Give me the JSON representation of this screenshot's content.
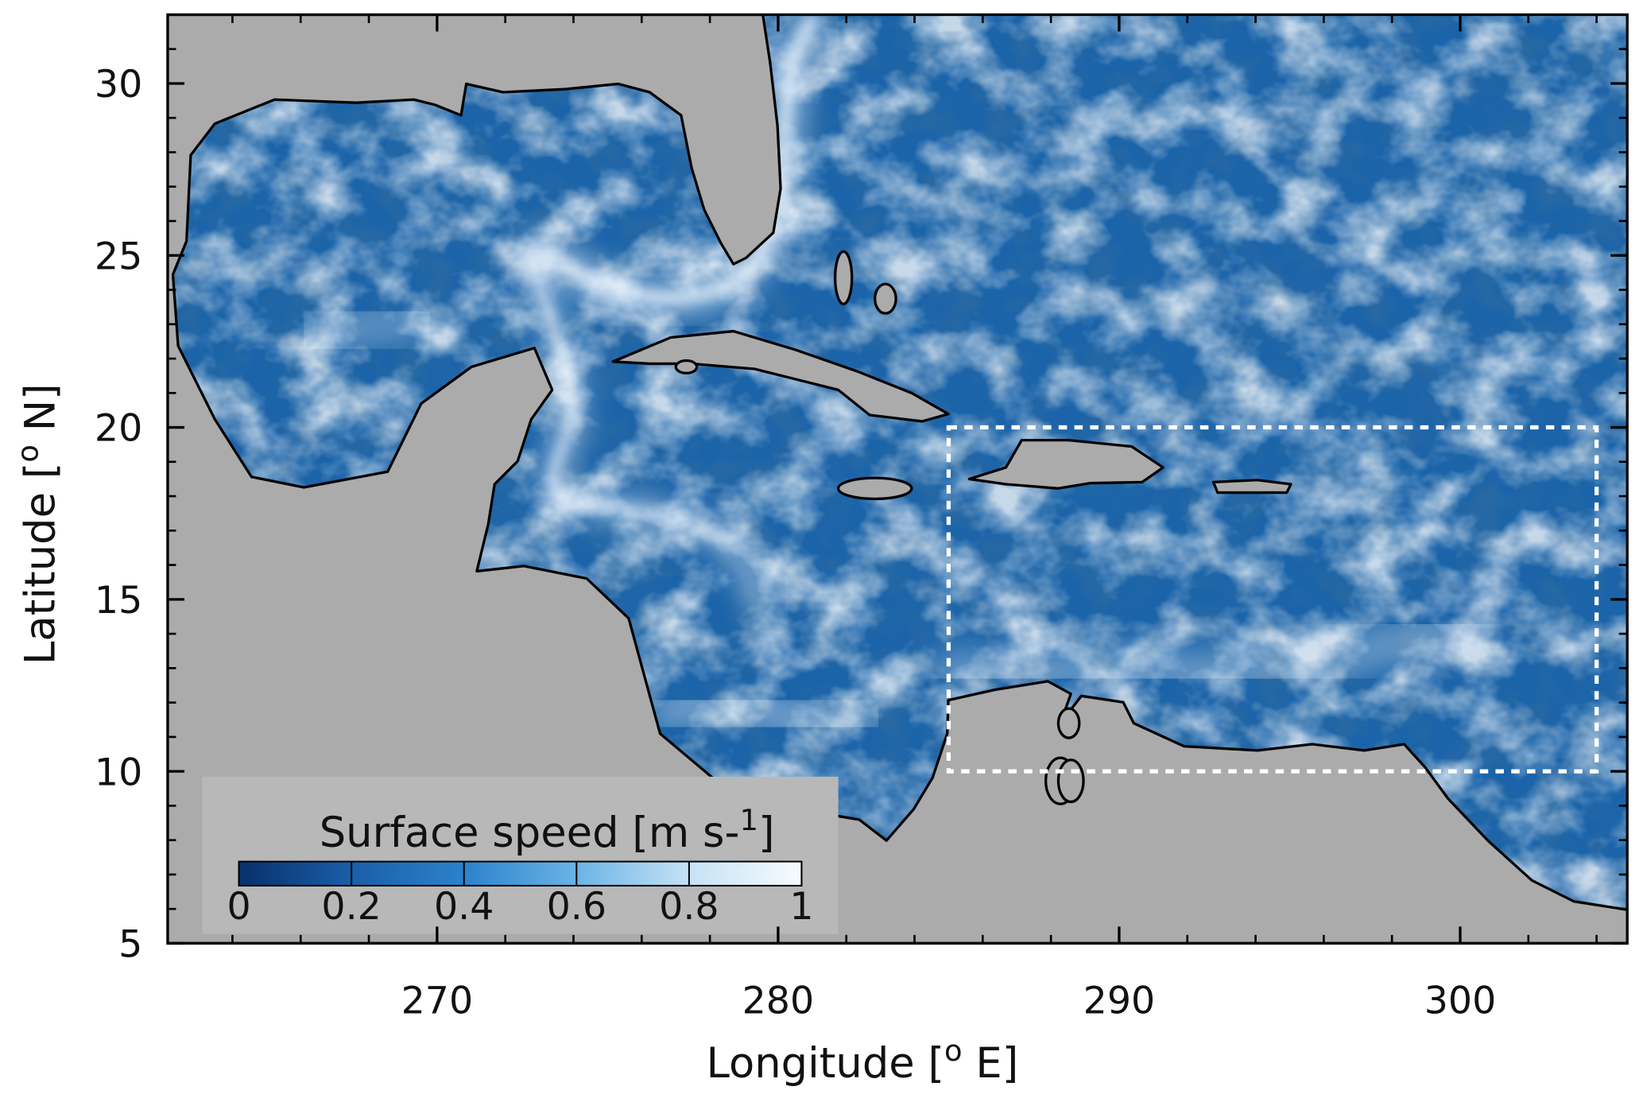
{
  "chart_data": {
    "type": "map",
    "xlabel": {
      "text": "Longitude [",
      "sup": "o",
      "tail": " E]"
    },
    "ylabel": {
      "text": "Latitude [",
      "sup": "o",
      "tail": " N]"
    },
    "xlim": [
      262.1,
      304.9
    ],
    "ylim": [
      5,
      32
    ],
    "xticks": [
      270,
      280,
      290,
      300
    ],
    "yticks": [
      5,
      10,
      15,
      20,
      25,
      30
    ],
    "xminor": 2,
    "yminor": 1,
    "land_color": "#ababab",
    "ocean_color": "#1b64a9",
    "box": {
      "lon": [
        285,
        304
      ],
      "lat": [
        10,
        20
      ],
      "color": "#ffffff"
    },
    "colorbar": {
      "title": {
        "text": "Surface speed [m s-",
        "sup": "1",
        "tail": "]"
      },
      "lim": [
        0,
        1
      ],
      "ticks": [
        0,
        0.2,
        0.4,
        0.6,
        0.8,
        1
      ],
      "colors": [
        "#08306b",
        "#1a5ea8",
        "#2b82cc",
        "#6ab4e6",
        "#c6e2f5",
        "#f7fbff"
      ]
    }
  }
}
